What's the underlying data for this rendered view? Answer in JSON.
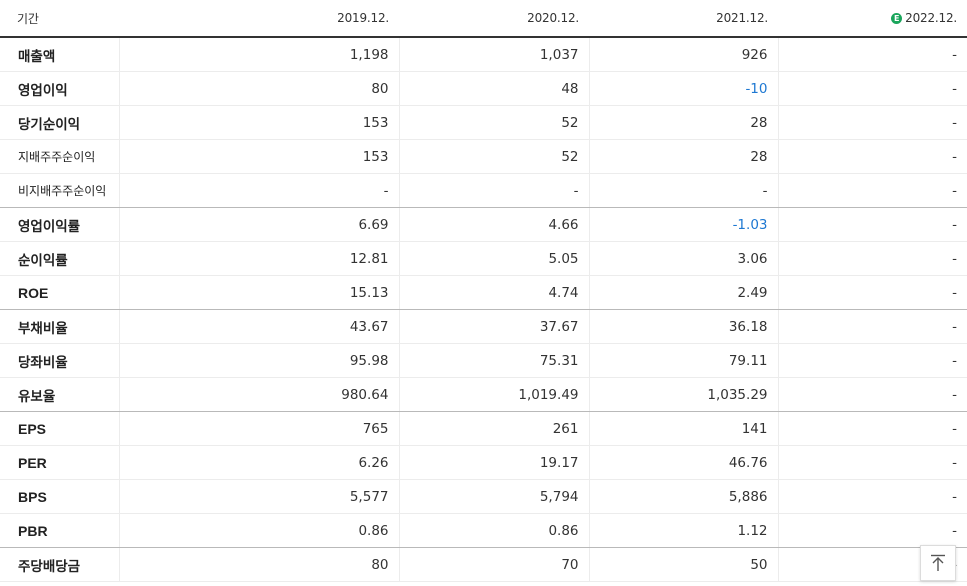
{
  "header": {
    "label": "기간",
    "periods": [
      "2019.12.",
      "2020.12.",
      "2021.12.",
      "2022.12."
    ],
    "estimate_badge": "E"
  },
  "rows": [
    {
      "label": "매출액",
      "values": [
        "1,198",
        "1,037",
        "926",
        "-"
      ]
    },
    {
      "label": "영업이익",
      "values": [
        "80",
        "48",
        "-10",
        "-"
      ]
    },
    {
      "label": "당기순이익",
      "values": [
        "153",
        "52",
        "28",
        "-"
      ]
    },
    {
      "label": "지배주주순이익",
      "values": [
        "153",
        "52",
        "28",
        "-"
      ]
    },
    {
      "label": "비지배주주순이익",
      "values": [
        "-",
        "-",
        "-",
        "-"
      ]
    },
    {
      "label": "영업이익률",
      "values": [
        "6.69",
        "4.66",
        "-1.03",
        "-"
      ]
    },
    {
      "label": "순이익률",
      "values": [
        "12.81",
        "5.05",
        "3.06",
        "-"
      ]
    },
    {
      "label": "ROE",
      "values": [
        "15.13",
        "4.74",
        "2.49",
        "-"
      ]
    },
    {
      "label": "부채비율",
      "values": [
        "43.67",
        "37.67",
        "36.18",
        "-"
      ]
    },
    {
      "label": "당좌비율",
      "values": [
        "95.98",
        "75.31",
        "79.11",
        "-"
      ]
    },
    {
      "label": "유보율",
      "values": [
        "980.64",
        "1,019.49",
        "1,035.29",
        "-"
      ]
    },
    {
      "label": "EPS",
      "values": [
        "765",
        "261",
        "141",
        "-"
      ]
    },
    {
      "label": "PER",
      "values": [
        "6.26",
        "19.17",
        "46.76",
        "-"
      ]
    },
    {
      "label": "BPS",
      "values": [
        "5,577",
        "5,794",
        "5,886",
        "-"
      ]
    },
    {
      "label": "PBR",
      "values": [
        "0.86",
        "0.86",
        "1.12",
        "-"
      ]
    },
    {
      "label": "주당배당금",
      "values": [
        "80",
        "70",
        "50",
        "-"
      ]
    }
  ],
  "colors": {
    "negative": "#1e78d2",
    "estimate_badge": "#1aa55b"
  },
  "icons": {
    "scroll_top": "arrow-up-to-line-icon"
  }
}
